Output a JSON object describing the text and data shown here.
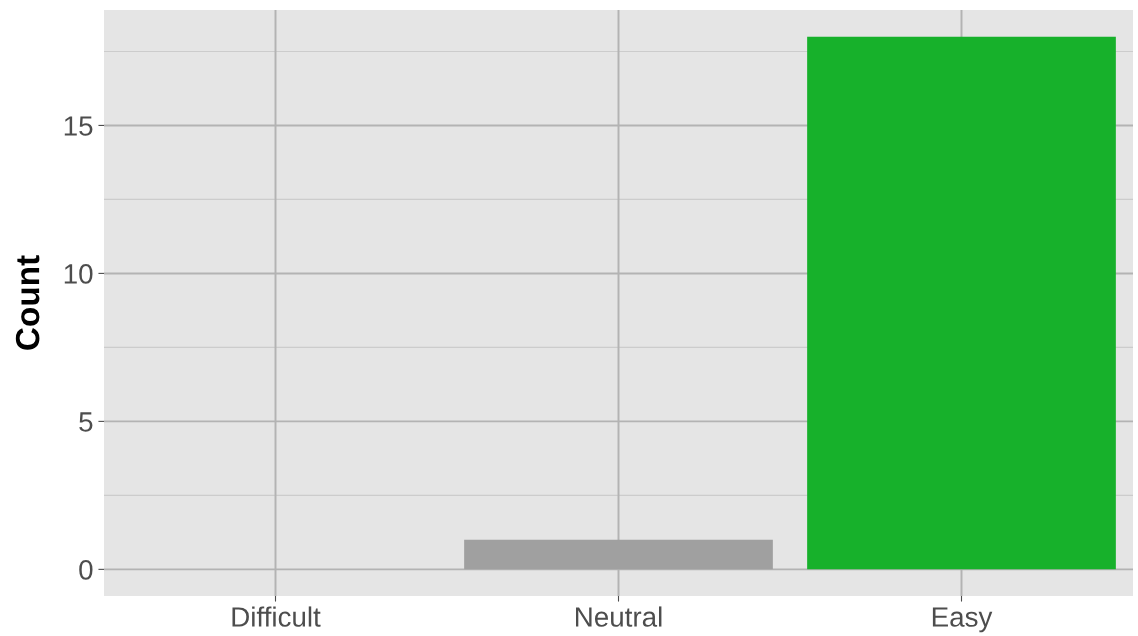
{
  "chart_data": {
    "type": "bar",
    "ylabel": "Count",
    "categories": [
      "Difficult",
      "Neutral",
      "Easy"
    ],
    "values": [
      0,
      1,
      18
    ],
    "colors": [
      "#e41a1c",
      "#a0a0a0",
      "#17b12b"
    ],
    "ylim": [
      -0.9,
      18.9
    ],
    "yticks": [
      0,
      5,
      10,
      15
    ],
    "grid": true,
    "legend": false
  }
}
